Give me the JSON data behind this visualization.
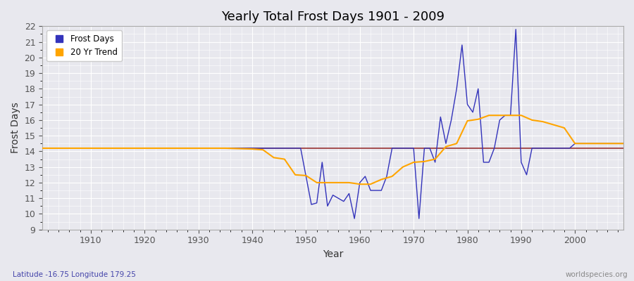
{
  "title": "Yearly Total Frost Days 1901 - 2009",
  "xlabel": "Year",
  "ylabel": "Frost Days",
  "subtitle": "Latitude -16.75 Longitude 179.25",
  "watermark": "worldspecies.org",
  "ylim": [
    9,
    22
  ],
  "yticks": [
    9,
    10,
    11,
    12,
    13,
    14,
    15,
    16,
    17,
    18,
    19,
    20,
    21,
    22
  ],
  "xlim": [
    1901,
    2009
  ],
  "xticks": [
    1910,
    1920,
    1930,
    1940,
    1950,
    1960,
    1970,
    1980,
    1990,
    2000
  ],
  "frost_color": "#3333bb",
  "trend_color": "#ffa500",
  "mean_color": "#993333",
  "bg_color": "#e8e8ee",
  "fig_color": "#e8e8ee",
  "frost_years": [
    1901,
    1902,
    1903,
    1904,
    1905,
    1906,
    1907,
    1908,
    1909,
    1910,
    1911,
    1912,
    1913,
    1914,
    1915,
    1916,
    1917,
    1918,
    1919,
    1920,
    1921,
    1922,
    1923,
    1924,
    1925,
    1926,
    1927,
    1928,
    1929,
    1930,
    1931,
    1932,
    1933,
    1934,
    1935,
    1936,
    1937,
    1938,
    1939,
    1940,
    1941,
    1942,
    1943,
    1944,
    1945,
    1946,
    1947,
    1948,
    1949,
    1950,
    1951,
    1952,
    1953,
    1954,
    1955,
    1956,
    1957,
    1958,
    1959,
    1960,
    1961,
    1962,
    1963,
    1964,
    1965,
    1966,
    1967,
    1968,
    1969,
    1970,
    1971,
    1972,
    1973,
    1974,
    1975,
    1976,
    1977,
    1978,
    1979,
    1980,
    1981,
    1982,
    1983,
    1984,
    1985,
    1986,
    1987,
    1988,
    1989,
    1990,
    1991,
    1992,
    1993,
    1994,
    1995,
    1996,
    1997,
    1998,
    1999,
    2000,
    2001,
    2002,
    2003,
    2004,
    2005,
    2006,
    2007,
    2008,
    2009
  ],
  "frost_values": [
    14.2,
    14.2,
    14.2,
    14.2,
    14.2,
    14.2,
    14.2,
    14.2,
    14.2,
    14.2,
    14.2,
    14.2,
    14.2,
    14.2,
    14.2,
    14.2,
    14.2,
    14.2,
    14.2,
    14.2,
    14.2,
    14.2,
    14.2,
    14.2,
    14.2,
    14.2,
    14.2,
    14.2,
    14.2,
    14.2,
    14.2,
    14.2,
    14.2,
    14.2,
    14.2,
    14.2,
    14.2,
    14.2,
    14.2,
    14.2,
    14.2,
    14.2,
    14.2,
    14.2,
    14.2,
    14.2,
    14.2,
    14.2,
    14.2,
    12.4,
    10.6,
    10.7,
    13.3,
    10.5,
    11.2,
    11.0,
    10.8,
    11.3,
    9.7,
    12.0,
    12.4,
    11.5,
    11.5,
    11.5,
    12.4,
    14.2,
    14.2,
    14.2,
    14.2,
    14.2,
    9.7,
    14.2,
    14.2,
    13.3,
    16.2,
    14.5,
    16.0,
    18.0,
    20.8,
    17.0,
    16.5,
    18.0,
    13.3,
    13.3,
    14.2,
    16.0,
    16.3,
    16.3,
    21.8,
    13.3,
    12.5,
    14.2,
    14.2,
    14.2,
    14.2,
    14.2,
    14.2,
    14.2,
    14.2,
    14.5,
    14.5,
    14.5,
    14.5,
    14.5,
    14.5,
    14.5,
    14.5,
    14.5,
    14.5
  ],
  "mean_line_start": 1901,
  "mean_line_end": 2009,
  "mean_value": 14.2,
  "trend_years": [
    1901,
    1905,
    1910,
    1915,
    1920,
    1925,
    1930,
    1935,
    1940,
    1942,
    1944,
    1946,
    1948,
    1950,
    1952,
    1954,
    1956,
    1958,
    1960,
    1962,
    1964,
    1966,
    1968,
    1970,
    1972,
    1974,
    1976,
    1978,
    1980,
    1982,
    1984,
    1986,
    1988,
    1990,
    1992,
    1994,
    1996,
    1998,
    2000,
    2002,
    2005,
    2009
  ],
  "trend_values": [
    14.2,
    14.2,
    14.2,
    14.2,
    14.2,
    14.2,
    14.2,
    14.2,
    14.15,
    14.1,
    13.6,
    13.5,
    12.5,
    12.45,
    12.0,
    12.0,
    12.0,
    12.0,
    11.9,
    11.9,
    12.2,
    12.4,
    13.0,
    13.3,
    13.35,
    13.5,
    14.3,
    14.5,
    15.95,
    16.05,
    16.3,
    16.3,
    16.3,
    16.3,
    16.0,
    15.9,
    15.7,
    15.5,
    14.5,
    14.5,
    14.5,
    14.5
  ]
}
